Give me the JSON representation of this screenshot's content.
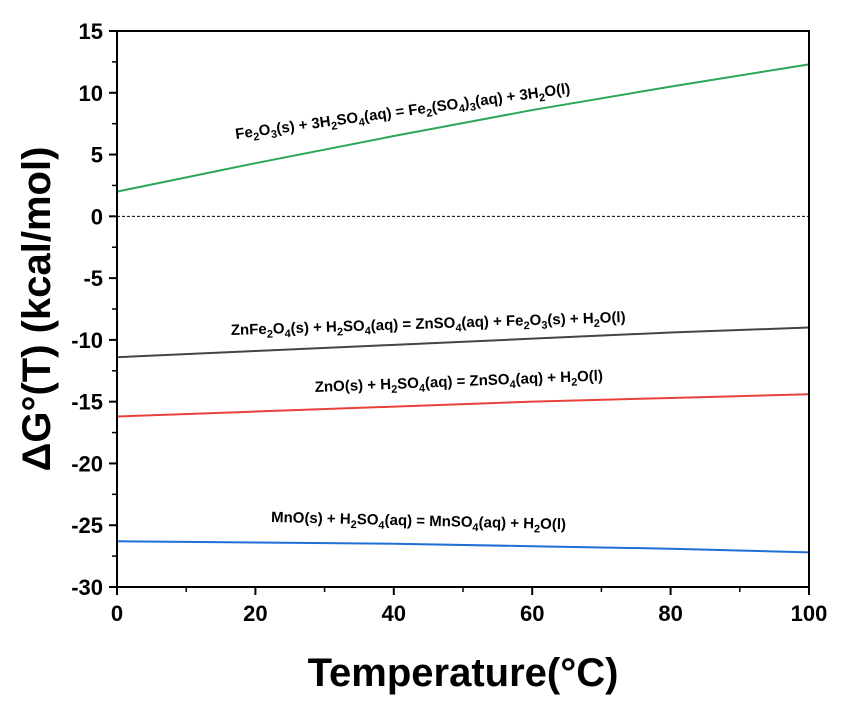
{
  "chart_data": {
    "type": "line",
    "title": "",
    "xlabel": "Temperature(°C)",
    "ylabel": "ΔG°(T) (kcal/mol)",
    "xlim": [
      0,
      100
    ],
    "ylim": [
      -30,
      15
    ],
    "x_ticks": [
      0,
      20,
      40,
      60,
      80,
      100
    ],
    "y_ticks": [
      -30,
      -25,
      -20,
      -15,
      -10,
      -5,
      0,
      5,
      10,
      15
    ],
    "x_tick_labels": [
      "0",
      "20",
      "40",
      "60",
      "80",
      "100"
    ],
    "y_tick_labels": [
      "-30",
      "-25",
      "-20",
      "-15",
      "-10",
      "-5",
      "0",
      "5",
      "10",
      "15"
    ],
    "reference_line": {
      "y": 0,
      "style": "dashed"
    },
    "series": [
      {
        "name": "Fe2O3(s) + 3H2SO4(aq) = Fe2(SO4)3(aq) + 3H2O(l)",
        "color": "#2ca65a",
        "x": [
          0,
          20,
          40,
          60,
          80,
          100
        ],
        "y": [
          2.0,
          4.3,
          6.5,
          8.6,
          10.5,
          12.3
        ],
        "label_parts": [
          {
            "t": "Fe"
          },
          {
            "t": "2",
            "sub": true
          },
          {
            "t": "O"
          },
          {
            "t": "3",
            "sub": true
          },
          {
            "t": "(s)  + 3H"
          },
          {
            "t": "2",
            "sub": true
          },
          {
            "t": "SO"
          },
          {
            "t": "4",
            "sub": true
          },
          {
            "t": "(aq) = Fe"
          },
          {
            "t": "2",
            "sub": true
          },
          {
            "t": "(SO"
          },
          {
            "t": "4",
            "sub": true
          },
          {
            "t": ")"
          },
          {
            "t": "3",
            "sub": true
          },
          {
            "t": "(aq)  + 3H"
          },
          {
            "t": "2",
            "sub": true
          },
          {
            "t": "O(l)"
          }
        ]
      },
      {
        "name": "ZnFe2O4(s) + H2SO4(aq) = ZnSO4(aq) + Fe2O3(s) + H2O(l)",
        "color": "#444444",
        "x": [
          0,
          20,
          40,
          60,
          80,
          100
        ],
        "y": [
          -11.4,
          -10.9,
          -10.4,
          -9.9,
          -9.4,
          -9.0
        ],
        "label_parts": [
          {
            "t": "ZnFe"
          },
          {
            "t": "2",
            "sub": true
          },
          {
            "t": "O"
          },
          {
            "t": "4",
            "sub": true
          },
          {
            "t": "(s)  + H"
          },
          {
            "t": "2",
            "sub": true
          },
          {
            "t": "SO"
          },
          {
            "t": "4",
            "sub": true
          },
          {
            "t": "(aq) = ZnSO"
          },
          {
            "t": "4",
            "sub": true
          },
          {
            "t": "(aq)  + Fe"
          },
          {
            "t": "2",
            "sub": true
          },
          {
            "t": "O"
          },
          {
            "t": "3",
            "sub": true
          },
          {
            "t": "(s)  + H"
          },
          {
            "t": "2",
            "sub": true
          },
          {
            "t": "O(l)"
          }
        ]
      },
      {
        "name": "ZnO(s) + H2SO4(aq) = ZnSO4(aq) + H2O(l)",
        "color": "#e8413c",
        "x": [
          0,
          20,
          40,
          60,
          80,
          100
        ],
        "y": [
          -16.2,
          -15.8,
          -15.4,
          -15.0,
          -14.7,
          -14.4
        ],
        "label_parts": [
          {
            "t": "ZnO(s)  + H"
          },
          {
            "t": "2",
            "sub": true
          },
          {
            "t": "SO"
          },
          {
            "t": "4",
            "sub": true
          },
          {
            "t": "(aq) = ZnSO"
          },
          {
            "t": "4",
            "sub": true
          },
          {
            "t": "(aq)  + H"
          },
          {
            "t": "2",
            "sub": true
          },
          {
            "t": "O(l)"
          }
        ]
      },
      {
        "name": "MnO(s) + H2SO4(aq) = MnSO4(aq) + H2O(l)",
        "color": "#1f6fd6",
        "x": [
          0,
          20,
          40,
          60,
          80,
          100
        ],
        "y": [
          -26.3,
          -26.4,
          -26.5,
          -26.7,
          -26.9,
          -27.2
        ],
        "label_parts": [
          {
            "t": "MnO(s) + H"
          },
          {
            "t": "2",
            "sub": true
          },
          {
            "t": "SO"
          },
          {
            "t": "4",
            "sub": true
          },
          {
            "t": "(aq) = MnSO"
          },
          {
            "t": "4",
            "sub": true
          },
          {
            "t": "(aq) + H"
          },
          {
            "t": "2",
            "sub": true
          },
          {
            "t": "O(l)"
          }
        ]
      }
    ]
  }
}
